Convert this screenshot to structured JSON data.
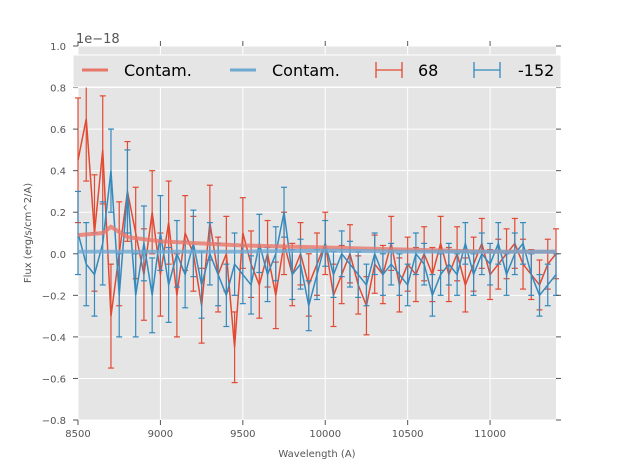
{
  "chart_data": {
    "type": "line",
    "title": "",
    "xlabel": "Wavelength (A)",
    "ylabel": "Flux (erg/s/cm^2/A)",
    "offset_text": "1e−18",
    "xlim": [
      8500,
      11400
    ],
    "ylim": [
      -0.8,
      1.0
    ],
    "xticks": [
      8500,
      9000,
      9500,
      10000,
      10500,
      11000
    ],
    "xtick_labels": [
      "8500",
      "9000",
      "9500",
      "10000",
      "10500",
      "11000"
    ],
    "yticks": [
      -0.8,
      -0.6,
      -0.4,
      -0.2,
      0.0,
      0.2,
      0.4,
      0.6,
      0.8,
      1.0
    ],
    "ytick_labels": [
      "−0.8",
      "−0.6",
      "−0.4",
      "−0.2",
      "0.0",
      "0.2",
      "0.4",
      "0.6",
      "0.8",
      "1.0"
    ],
    "grid": true,
    "legend_placement": "top",
    "x": [
      8500,
      8550,
      8600,
      8650,
      8700,
      8750,
      8800,
      8850,
      8900,
      8950,
      9000,
      9050,
      9100,
      9150,
      9200,
      9250,
      9300,
      9350,
      9400,
      9450,
      9500,
      9550,
      9600,
      9650,
      9700,
      9750,
      9800,
      9850,
      9900,
      9950,
      10000,
      10050,
      10100,
      10150,
      10200,
      10250,
      10300,
      10350,
      10400,
      10450,
      10500,
      10550,
      10600,
      10650,
      10700,
      10750,
      10800,
      10850,
      10900,
      10950,
      11000,
      11050,
      11100,
      11150,
      11200,
      11250,
      11300,
      11350,
      11400
    ],
    "series": [
      {
        "name": "Contam.",
        "kind": "line",
        "color": "#e8776a",
        "x": [
          8500,
          8650,
          8700,
          8800,
          9000,
          9500,
          10000,
          10500,
          11000,
          11400
        ],
        "y": [
          0.09,
          0.1,
          0.13,
          0.08,
          0.06,
          0.04,
          0.03,
          0.02,
          0.01,
          0.01
        ]
      },
      {
        "name": "Contam.",
        "kind": "line",
        "color": "#6fa8d0",
        "x": [
          8500,
          9500,
          10000,
          10500,
          11000,
          11400
        ],
        "y": [
          0.01,
          0.01,
          0.015,
          0.01,
          0.01,
          0.01
        ]
      },
      {
        "name": "68",
        "kind": "errorbar",
        "color": "#e24a33",
        "y": [
          0.45,
          0.65,
          0.1,
          0.5,
          -0.3,
          0.0,
          0.3,
          0.1,
          -0.1,
          0.2,
          -0.1,
          0.15,
          -0.2,
          0.1,
          0.0,
          -0.25,
          0.15,
          -0.1,
          0.0,
          -0.45,
          0.1,
          -0.05,
          -0.15,
          0.0,
          -0.2,
          0.05,
          -0.1,
          0.0,
          -0.15,
          -0.05,
          0.05,
          -0.2,
          -0.1,
          0.0,
          -0.15,
          -0.25,
          -0.05,
          -0.1,
          0.05,
          -0.15,
          -0.05,
          -0.1,
          0.0,
          -0.1,
          0.05,
          -0.1,
          0.0,
          -0.15,
          -0.05,
          0.05,
          -0.1,
          -0.05,
          0.0,
          0.05,
          -0.05,
          -0.1,
          -0.15,
          -0.05,
          0.0
        ],
        "err": [
          0.3,
          0.3,
          0.28,
          0.26,
          0.25,
          0.25,
          0.24,
          0.22,
          0.22,
          0.2,
          0.2,
          0.2,
          0.2,
          0.18,
          0.18,
          0.18,
          0.18,
          0.18,
          0.18,
          0.17,
          0.17,
          0.16,
          0.16,
          0.16,
          0.16,
          0.15,
          0.15,
          0.15,
          0.15,
          0.15,
          0.15,
          0.15,
          0.14,
          0.14,
          0.14,
          0.14,
          0.14,
          0.14,
          0.13,
          0.13,
          0.13,
          0.13,
          0.13,
          0.13,
          0.13,
          0.13,
          0.13,
          0.13,
          0.13,
          0.12,
          0.12,
          0.12,
          0.12,
          0.12,
          0.12,
          0.12,
          0.12,
          0.12,
          0.12
        ]
      },
      {
        "name": "-152",
        "kind": "errorbar",
        "color": "#348abd",
        "y": [
          0.1,
          -0.05,
          -0.1,
          0.05,
          0.4,
          -0.2,
          0.3,
          -0.2,
          0.05,
          -0.2,
          0.1,
          -0.15,
          0.0,
          -0.1,
          0.05,
          -0.15,
          0.0,
          -0.1,
          -0.2,
          -0.05,
          -0.1,
          -0.15,
          0.05,
          -0.1,
          0.0,
          0.2,
          -0.1,
          -0.05,
          -0.25,
          -0.1,
          0.05,
          -0.1,
          0.0,
          -0.05,
          -0.1,
          -0.15,
          0.0,
          -0.1,
          -0.05,
          -0.1,
          -0.15,
          0.0,
          -0.05,
          -0.2,
          -0.1,
          -0.05,
          -0.1,
          0.05,
          -0.1,
          0.0,
          -0.05,
          0.05,
          -0.1,
          0.0,
          0.05,
          -0.1,
          -0.2,
          -0.15,
          -0.1
        ],
        "err": [
          0.2,
          0.2,
          0.2,
          0.2,
          0.2,
          0.2,
          0.2,
          0.2,
          0.18,
          0.18,
          0.18,
          0.18,
          0.16,
          0.16,
          0.16,
          0.16,
          0.15,
          0.15,
          0.15,
          0.15,
          0.14,
          0.14,
          0.14,
          0.13,
          0.13,
          0.12,
          0.12,
          0.12,
          0.12,
          0.12,
          0.11,
          0.11,
          0.11,
          0.11,
          0.11,
          0.1,
          0.1,
          0.1,
          0.1,
          0.1,
          0.1,
          0.1,
          0.1,
          0.1,
          0.1,
          0.1,
          0.1,
          0.1,
          0.1,
          0.1,
          0.1,
          0.1,
          0.1,
          0.1,
          0.1,
          0.1,
          0.1,
          0.1,
          0.1
        ]
      }
    ]
  }
}
